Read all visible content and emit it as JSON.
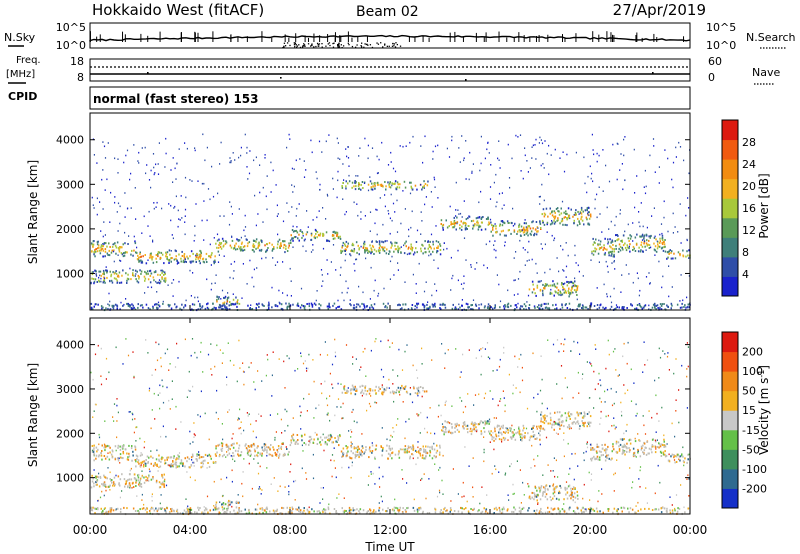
{
  "header": {
    "radar": "Hokkaido West (fitACF)",
    "beam": "Beam 02",
    "date": "27/Apr/2019"
  },
  "chart_data": [
    {
      "type": "line",
      "panel": "noise",
      "left_label": "N.Sky",
      "right_label": "N.Search",
      "left_ticks": [
        "10^5",
        "10^0"
      ],
      "right_ticks": [
        "10^5",
        "10^0"
      ],
      "yscale": "log",
      "ylim": [
        1,
        100000
      ]
    },
    {
      "type": "line",
      "panel": "frequency",
      "left_label_lines": [
        "Freq.",
        "[MHz]"
      ],
      "right_label": "Nave",
      "left_ticks": [
        "18",
        "8"
      ],
      "right_ticks": [
        "60",
        "0"
      ],
      "ylim": [
        8,
        18
      ],
      "y2lim": [
        0,
        60
      ]
    },
    {
      "type": "text",
      "panel": "cpid",
      "label": "CPID",
      "value": "normal (fast stereo) 153"
    },
    {
      "type": "heatmap",
      "panel": "power",
      "ylabel": "Slant Range [km]",
      "yticks": [
        1000,
        2000,
        3000,
        4000
      ],
      "ylim": [
        180,
        4600
      ],
      "xlim_hours": [
        0,
        24
      ],
      "colorbar": {
        "label": "Power [dB]",
        "ticks": [
          "4",
          "8",
          "12",
          "16",
          "20",
          "24",
          "28"
        ],
        "range": [
          0,
          30
        ],
        "colors": [
          "#1a22cc",
          "#2f4ea8",
          "#3f7f7a",
          "#5a9a58",
          "#a8c83a",
          "#f2b020",
          "#f28c10",
          "#f05a10",
          "#dd1a10"
        ]
      },
      "bands": [
        {
          "t0": 0.0,
          "t1": 1.8,
          "r0": 1400,
          "r1": 1750
        },
        {
          "t0": 1.8,
          "t1": 5.0,
          "r0": 1250,
          "r1": 1550
        },
        {
          "t0": 5.0,
          "t1": 8.0,
          "r0": 1500,
          "r1": 1800
        },
        {
          "t0": 8.0,
          "t1": 10.0,
          "r0": 1750,
          "r1": 2000
        },
        {
          "t0": 10.0,
          "t1": 14.0,
          "r0": 1450,
          "r1": 1750
        },
        {
          "t0": 14.0,
          "t1": 16.0,
          "r0": 2000,
          "r1": 2300
        },
        {
          "t0": 16.0,
          "t1": 18.0,
          "r0": 1850,
          "r1": 2200
        },
        {
          "t0": 18.0,
          "t1": 20.0,
          "r0": 2100,
          "r1": 2500
        },
        {
          "t0": 20.0,
          "t1": 21.0,
          "r0": 1400,
          "r1": 1800
        },
        {
          "t0": 21.0,
          "t1": 23.0,
          "r0": 1500,
          "r1": 1900
        },
        {
          "t0": 23.0,
          "t1": 24.0,
          "r0": 1350,
          "r1": 1550
        },
        {
          "t0": 0.0,
          "t1": 3.0,
          "r0": 800,
          "r1": 1100
        },
        {
          "t0": 10.0,
          "t1": 13.5,
          "r0": 2900,
          "r1": 3100
        },
        {
          "t0": 17.5,
          "t1": 19.5,
          "r0": 500,
          "r1": 850
        },
        {
          "t0": 5.0,
          "t1": 6.0,
          "r0": 300,
          "r1": 500
        },
        {
          "t0": 0.0,
          "t1": 24.0,
          "r0": 200,
          "r1": 350
        }
      ]
    },
    {
      "type": "heatmap",
      "panel": "velocity",
      "ylabel": "Slant Range [km]",
      "yticks": [
        1000,
        2000,
        3000,
        4000
      ],
      "ylim": [
        180,
        4600
      ],
      "xlim_hours": [
        0,
        24
      ],
      "xlabel": "Time UT",
      "xticks": [
        "00:00",
        "04:00",
        "08:00",
        "12:00",
        "16:00",
        "20:00",
        "00:00"
      ],
      "colorbar": {
        "label": "Velocity [m s",
        "label_exponent": "-1",
        "label_close": "]",
        "ticks": [
          "200",
          "100",
          "50",
          "15",
          "-15",
          "-50",
          "-100",
          "-200"
        ],
        "colors": [
          "#1530c8",
          "#2f6a90",
          "#3e8f5c",
          "#64c048",
          "#c8c8c8",
          "#f2b020",
          "#f08a18",
          "#f05010",
          "#dd1a10"
        ]
      },
      "ground_scatter_color": "#c0bfb8"
    }
  ]
}
